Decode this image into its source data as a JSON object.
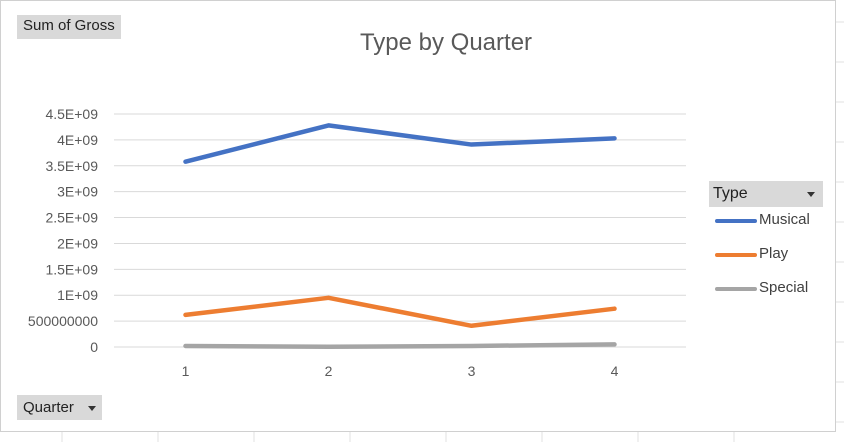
{
  "pivot": {
    "value_field": "Sum of Gross",
    "axis_field": "Quarter"
  },
  "legend": {
    "title": "Type"
  },
  "colors": {
    "Musical": "#4472c4",
    "Play": "#ed7d31",
    "Special": "#a5a5a5",
    "gridline": "#d9d9d9",
    "tick_text": "#595959"
  },
  "chart_data": {
    "type": "line",
    "title": "Type by Quarter",
    "xlabel": "",
    "ylabel": "",
    "categories": [
      "1",
      "2",
      "3",
      "4"
    ],
    "y_ticks": [
      "0",
      "500000000",
      "1E+09",
      "1.5E+09",
      "2E+09",
      "2.5E+09",
      "3E+09",
      "3.5E+09",
      "4E+09",
      "4.5E+09"
    ],
    "ylim": [
      0,
      4500000000
    ],
    "grid": true,
    "legend_position": "right",
    "series": [
      {
        "name": "Musical",
        "values": [
          3580000000,
          4280000000,
          3910000000,
          4030000000
        ]
      },
      {
        "name": "Play",
        "values": [
          620000000,
          950000000,
          410000000,
          740000000
        ]
      },
      {
        "name": "Special",
        "values": [
          20000000,
          5000000,
          20000000,
          50000000
        ]
      }
    ]
  }
}
